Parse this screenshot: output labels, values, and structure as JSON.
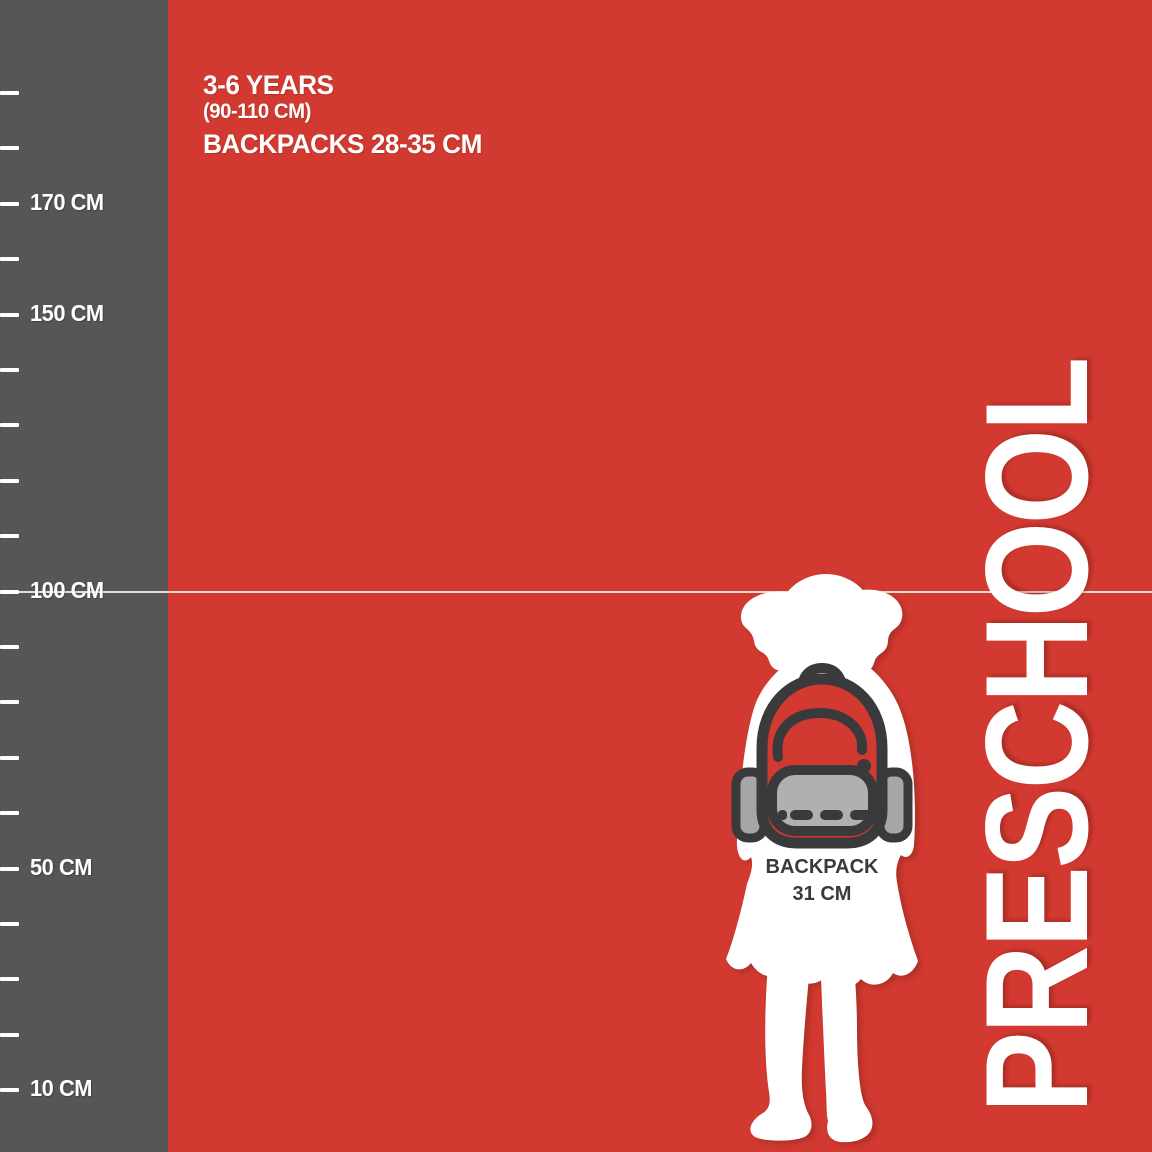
{
  "title_block": {
    "age_range": "3-6 YEARS",
    "height_range": "(90-110 CM)",
    "backpack_size_range": "BACKPACKS 28-35 CM"
  },
  "ruler": {
    "unit": "CM",
    "min_cm": 10,
    "max_cm": 190,
    "tick_step_cm": 10,
    "labeled_marks": [
      {
        "cm": 170,
        "label": "170 CM"
      },
      {
        "cm": 150,
        "label": "150 CM"
      },
      {
        "cm": 100,
        "label": "100 CM"
      },
      {
        "cm": 50,
        "label": "50 CM"
      },
      {
        "cm": 10,
        "label": "10 CM"
      }
    ],
    "reference_line_cm": 100
  },
  "figure": {
    "backpack_label_line1": "BACKPACK",
    "backpack_label_line2": "31 CM"
  },
  "category_label": "PRESCHOOL",
  "colors": {
    "background": "#d23a31",
    "ruler_bar": "#575556",
    "text_white": "#ffffff",
    "outline_charcoal": "#3a393b",
    "pocket_gray": "#b2afb0",
    "side_pocket_gray": "#a8a5a6",
    "reference_line": "#f4efe3"
  }
}
